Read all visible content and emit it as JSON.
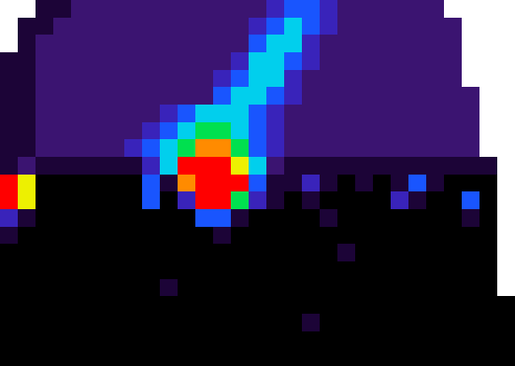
{
  "chart_data": {
    "type": "heatmap",
    "tick_labels": false,
    "zlim": [
      0,
      9
    ],
    "cells": [
      [
        null,
        null,
        1,
        1,
        2,
        2,
        2,
        2,
        2,
        2,
        2,
        2,
        2,
        2,
        2,
        3,
        4,
        4,
        3,
        2,
        2,
        2,
        2,
        2,
        2,
        null,
        null,
        null,
        null
      ],
      [
        null,
        1,
        1,
        2,
        2,
        2,
        2,
        2,
        2,
        2,
        2,
        2,
        2,
        2,
        3,
        4,
        5,
        4,
        3,
        2,
        2,
        2,
        2,
        2,
        2,
        2,
        null,
        null,
        null
      ],
      [
        null,
        1,
        2,
        2,
        2,
        2,
        2,
        2,
        2,
        2,
        2,
        2,
        2,
        2,
        4,
        5,
        5,
        3,
        2,
        2,
        2,
        2,
        2,
        2,
        2,
        2,
        null,
        null,
        null
      ],
      [
        1,
        1,
        2,
        2,
        2,
        2,
        2,
        2,
        2,
        2,
        2,
        2,
        2,
        3,
        5,
        5,
        4,
        3,
        2,
        2,
        2,
        2,
        2,
        2,
        2,
        2,
        null,
        null,
        null
      ],
      [
        1,
        1,
        2,
        2,
        2,
        2,
        2,
        2,
        2,
        2,
        2,
        2,
        3,
        4,
        5,
        5,
        3,
        2,
        2,
        2,
        2,
        2,
        2,
        2,
        2,
        2,
        null,
        null,
        null
      ],
      [
        1,
        1,
        2,
        2,
        2,
        2,
        2,
        2,
        2,
        2,
        2,
        2,
        4,
        5,
        5,
        4,
        3,
        2,
        2,
        2,
        2,
        2,
        2,
        2,
        2,
        2,
        2,
        null,
        null
      ],
      [
        1,
        1,
        2,
        2,
        2,
        2,
        2,
        2,
        2,
        3,
        4,
        5,
        5,
        5,
        4,
        3,
        2,
        2,
        2,
        2,
        2,
        2,
        2,
        2,
        2,
        2,
        2,
        null,
        null
      ],
      [
        1,
        1,
        2,
        2,
        2,
        2,
        2,
        2,
        3,
        4,
        5,
        6,
        6,
        5,
        4,
        3,
        2,
        2,
        2,
        2,
        2,
        2,
        2,
        2,
        2,
        2,
        2,
        null,
        null
      ],
      [
        1,
        1,
        2,
        2,
        2,
        2,
        2,
        3,
        4,
        5,
        6,
        8,
        8,
        6,
        4,
        3,
        2,
        2,
        2,
        2,
        2,
        2,
        2,
        2,
        2,
        2,
        2,
        null,
        null
      ],
      [
        1,
        2,
        1,
        1,
        1,
        1,
        1,
        1,
        3,
        5,
        9,
        9,
        9,
        7,
        5,
        2,
        1,
        1,
        1,
        1,
        1,
        1,
        1,
        1,
        1,
        1,
        1,
        1,
        null
      ],
      [
        9,
        7,
        0,
        0,
        0,
        0,
        0,
        0,
        4,
        1,
        8,
        9,
        9,
        9,
        4,
        1,
        1,
        3,
        1,
        0,
        1,
        0,
        1,
        4,
        1,
        0,
        0,
        0,
        null
      ],
      [
        9,
        7,
        0,
        0,
        0,
        0,
        0,
        0,
        4,
        0,
        3,
        9,
        9,
        6,
        3,
        1,
        0,
        1,
        0,
        0,
        0,
        0,
        3,
        1,
        0,
        0,
        4,
        0,
        null
      ],
      [
        3,
        1,
        0,
        0,
        0,
        0,
        0,
        0,
        0,
        0,
        0,
        4,
        4,
        1,
        0,
        0,
        0,
        0,
        1,
        0,
        0,
        0,
        0,
        0,
        0,
        0,
        1,
        0,
        null
      ],
      [
        1,
        0,
        0,
        0,
        0,
        0,
        0,
        0,
        0,
        0,
        0,
        0,
        1,
        0,
        0,
        0,
        0,
        0,
        0,
        0,
        0,
        0,
        0,
        0,
        0,
        0,
        0,
        0,
        null
      ],
      [
        0,
        0,
        0,
        0,
        0,
        0,
        0,
        0,
        0,
        0,
        0,
        0,
        0,
        0,
        0,
        0,
        0,
        0,
        0,
        1,
        0,
        0,
        0,
        0,
        0,
        0,
        0,
        0,
        null
      ],
      [
        0,
        0,
        0,
        0,
        0,
        0,
        0,
        0,
        0,
        0,
        0,
        0,
        0,
        0,
        0,
        0,
        0,
        0,
        0,
        0,
        0,
        0,
        0,
        0,
        0,
        0,
        0,
        0,
        null
      ],
      [
        0,
        0,
        0,
        0,
        0,
        0,
        0,
        0,
        0,
        1,
        0,
        0,
        0,
        0,
        0,
        0,
        0,
        0,
        0,
        0,
        0,
        0,
        0,
        0,
        0,
        0,
        0,
        0,
        null
      ],
      [
        0,
        0,
        0,
        0,
        0,
        0,
        0,
        0,
        0,
        0,
        0,
        0,
        0,
        0,
        0,
        0,
        0,
        0,
        0,
        0,
        0,
        0,
        0,
        0,
        0,
        0,
        0,
        0,
        0
      ],
      [
        0,
        0,
        0,
        0,
        0,
        0,
        0,
        0,
        0,
        0,
        0,
        0,
        0,
        0,
        0,
        0,
        0,
        1,
        0,
        0,
        0,
        0,
        0,
        0,
        0,
        0,
        0,
        0,
        0
      ],
      [
        0,
        0,
        0,
        0,
        0,
        0,
        0,
        0,
        0,
        0,
        0,
        0,
        0,
        0,
        0,
        0,
        0,
        0,
        0,
        0,
        0,
        0,
        0,
        0,
        0,
        0,
        0,
        0,
        0
      ],
      [
        0,
        0,
        0,
        0,
        0,
        0,
        0,
        0,
        0,
        0,
        0,
        0,
        0,
        0,
        0,
        0,
        0,
        0,
        0,
        0,
        0,
        0,
        0,
        0,
        0,
        0,
        0,
        0,
        0
      ]
    ]
  }
}
